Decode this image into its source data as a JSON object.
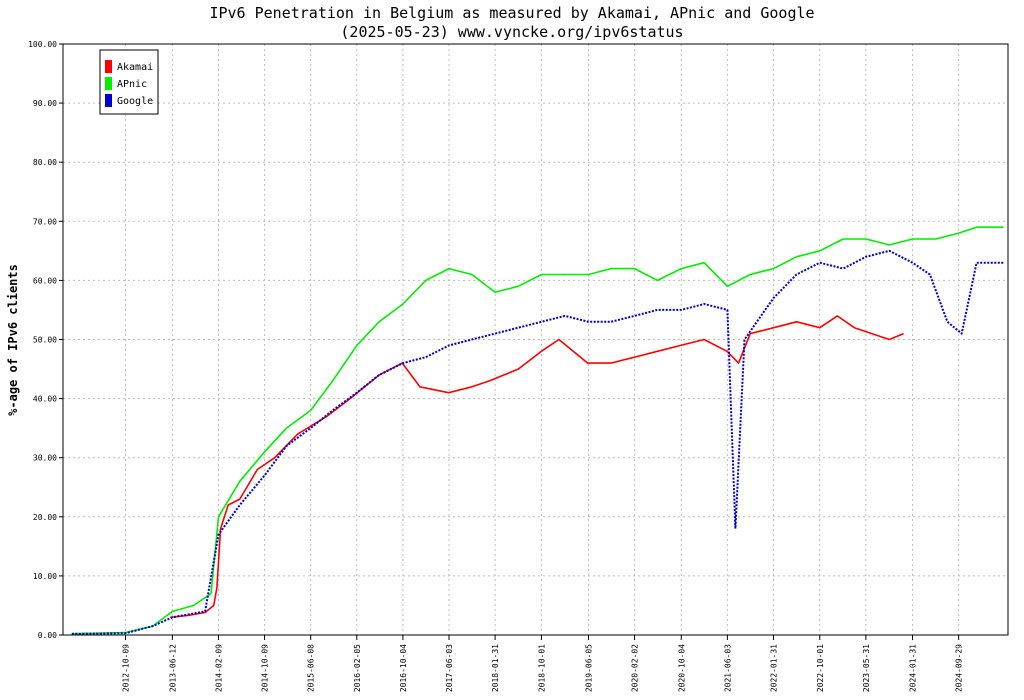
{
  "chart_data": {
    "type": "line",
    "title": "IPv6 Penetration in Belgium as measured by Akamai, APnic and Google",
    "subtitle": "(2025-05-23) www.vyncke.org/ipv6status",
    "xlabel": "",
    "ylabel": "%-age of IPv6 clients",
    "ylim": [
      0,
      100
    ],
    "xlim": [
      "2011-11-16",
      "2025-06-15"
    ],
    "y_ticks": [
      "0.00",
      "10.00",
      "20.00",
      "30.00",
      "40.00",
      "50.00",
      "60.00",
      "70.00",
      "80.00",
      "90.00",
      "100.00"
    ],
    "x_ticks": [
      "2012-10-09",
      "2013-06-12",
      "2014-02-09",
      "2014-10-09",
      "2015-06-08",
      "2016-02-05",
      "2016-10-04",
      "2017-06-03",
      "2018-01-31",
      "2018-10-01",
      "2019-06-05",
      "2020-02-02",
      "2020-10-04",
      "2021-06-03",
      "2022-01-31",
      "2022-10-01",
      "2023-05-31",
      "2024-01-31",
      "2024-09-29"
    ],
    "grid": true,
    "legend_position": "top-left",
    "series": [
      {
        "name": "Akamai",
        "color": "#ff0000",
        "style": "solid",
        "x": [
          "2013-06-01",
          "2013-09-01",
          "2013-12-01",
          "2014-01-15",
          "2014-02-01",
          "2014-02-20",
          "2014-04-01",
          "2014-06-01",
          "2014-09-01",
          "2014-12-01",
          "2015-04-01",
          "2015-09-01",
          "2016-01-01",
          "2016-06-01",
          "2016-10-01",
          "2017-01-01",
          "2017-06-01",
          "2017-10-01",
          "2018-01-01",
          "2018-06-01",
          "2018-10-01",
          "2019-01-01",
          "2019-06-01",
          "2019-10-01",
          "2020-02-01",
          "2020-06-01",
          "2020-10-01",
          "2021-02-01",
          "2021-06-01",
          "2021-08-01",
          "2021-10-01",
          "2022-02-01",
          "2022-06-01",
          "2022-10-01",
          "2023-01-01",
          "2023-04-01",
          "2023-07-01",
          "2023-10-01",
          "2023-12-15"
        ],
        "y": [
          3.0,
          3.3,
          3.8,
          5.0,
          8.0,
          18.0,
          22.0,
          23.0,
          28.0,
          30.0,
          34.0,
          37.0,
          40.0,
          44.0,
          46.0,
          42.0,
          41.0,
          42.0,
          43.0,
          45.0,
          48.0,
          50.0,
          46.0,
          46.0,
          47.0,
          48.0,
          49.0,
          50.0,
          48.0,
          46.0,
          51.0,
          52.0,
          53.0,
          52.0,
          54.0,
          52.0,
          51.0,
          50.0,
          51.0
        ]
      },
      {
        "name": "APnic",
        "color": "#00ee00",
        "style": "solid",
        "x": [
          "2012-01-01",
          "2012-06-01",
          "2012-10-09",
          "2013-03-01",
          "2013-06-12",
          "2013-10-01",
          "2014-01-01",
          "2014-02-09",
          "2014-06-01",
          "2014-10-09",
          "2015-02-01",
          "2015-06-08",
          "2015-10-01",
          "2016-02-05",
          "2016-06-01",
          "2016-10-04",
          "2017-02-01",
          "2017-06-03",
          "2017-10-01",
          "2018-01-31",
          "2018-06-01",
          "2018-10-01",
          "2019-02-01",
          "2019-06-05",
          "2019-10-01",
          "2020-02-02",
          "2020-06-01",
          "2020-10-04",
          "2021-02-01",
          "2021-06-03",
          "2021-10-01",
          "2022-01-31",
          "2022-06-01",
          "2022-10-01",
          "2023-02-01",
          "2023-05-31",
          "2023-10-01",
          "2024-01-31",
          "2024-06-01",
          "2024-09-29",
          "2025-01-01",
          "2025-05-23"
        ],
        "y": [
          0.2,
          0.3,
          0.4,
          1.5,
          4.0,
          5.0,
          7.0,
          20.0,
          26.0,
          31.0,
          35.0,
          38.0,
          43.0,
          49.0,
          53.0,
          56.0,
          60.0,
          62.0,
          61.0,
          58.0,
          59.0,
          61.0,
          61.0,
          61.0,
          62.0,
          62.0,
          60.0,
          62.0,
          63.0,
          59.0,
          61.0,
          62.0,
          64.0,
          65.0,
          67.0,
          67.0,
          66.0,
          67.0,
          67.0,
          68.0,
          69.0,
          69.0
        ]
      },
      {
        "name": "Google",
        "color": "#0000cc",
        "style": "dotted",
        "x": [
          "2012-01-01",
          "2012-10-09",
          "2013-03-01",
          "2013-06-12",
          "2013-12-01",
          "2014-02-09",
          "2014-06-01",
          "2014-10-09",
          "2015-02-01",
          "2015-06-08",
          "2015-10-01",
          "2016-02-05",
          "2016-06-01",
          "2016-10-04",
          "2017-02-01",
          "2017-06-03",
          "2017-10-01",
          "2018-01-31",
          "2018-06-01",
          "2018-10-01",
          "2019-02-01",
          "2019-06-05",
          "2019-10-01",
          "2020-02-02",
          "2020-06-01",
          "2020-10-04",
          "2021-02-01",
          "2021-06-03",
          "2021-07-15",
          "2021-09-01",
          "2022-01-31",
          "2022-06-01",
          "2022-10-01",
          "2023-02-01",
          "2023-05-31",
          "2023-10-01",
          "2024-01-31",
          "2024-05-01",
          "2024-08-01",
          "2024-10-15",
          "2025-01-01",
          "2025-05-23"
        ],
        "y": [
          0.2,
          0.3,
          1.5,
          3.0,
          4.0,
          17.0,
          22.0,
          27.0,
          32.0,
          35.0,
          38.0,
          41.0,
          44.0,
          46.0,
          47.0,
          49.0,
          50.0,
          51.0,
          52.0,
          53.0,
          54.0,
          53.0,
          53.0,
          54.0,
          55.0,
          55.0,
          56.0,
          55.0,
          18.0,
          50.0,
          57.0,
          61.0,
          63.0,
          62.0,
          64.0,
          65.0,
          63.0,
          61.0,
          53.0,
          51.0,
          63.0,
          63.0
        ]
      }
    ]
  }
}
